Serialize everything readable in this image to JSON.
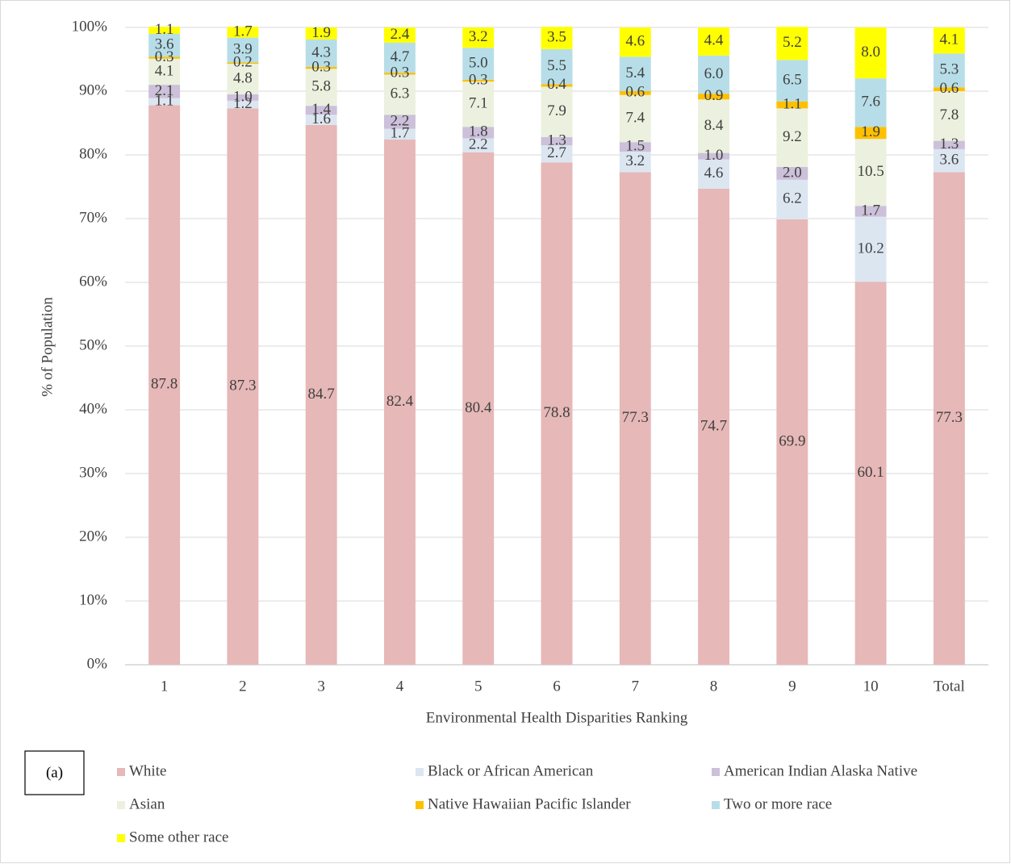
{
  "chart_data": {
    "type": "stacked_bar",
    "xlabel": "Environmental Health Disparities Ranking",
    "ylabel": "% of Population",
    "annotation": "(a)",
    "categories": [
      "1",
      "2",
      "3",
      "4",
      "5",
      "6",
      "7",
      "8",
      "9",
      "10",
      "Total"
    ],
    "series": [
      {
        "name": "White",
        "color": "#e6b8b7",
        "values": [
          87.8,
          87.3,
          84.7,
          82.4,
          80.4,
          78.8,
          77.3,
          74.7,
          69.9,
          60.1,
          77.3
        ],
        "value_labels": [
          "87.8",
          "87.3",
          "84.7",
          "82.4",
          "80.4",
          "78.8",
          "77.3",
          "74.7",
          "69.9",
          "60.1",
          "77.3"
        ]
      },
      {
        "name": "Black or African American",
        "color": "#dce6f1",
        "values": [
          1.1,
          1.2,
          1.6,
          1.7,
          2.2,
          2.7,
          3.2,
          4.6,
          6.2,
          10.2,
          3.6
        ],
        "value_labels": [
          "1.1",
          "1.2",
          "1.6",
          "1.7",
          "2.2",
          "2.7",
          "3.2",
          "4.6",
          "6.2",
          "10.2",
          "3.6"
        ]
      },
      {
        "name": "American Indian Alaska Native",
        "color": "#ccc0da",
        "values": [
          2.1,
          1.0,
          1.4,
          2.2,
          1.8,
          1.3,
          1.5,
          1.0,
          2.0,
          1.7,
          1.3
        ],
        "value_labels": [
          "2.1",
          "1.0",
          "1.4",
          "2.2",
          "1.8",
          "1.3",
          "1.5",
          "1.0",
          "2.0",
          "1.7",
          "1.3"
        ]
      },
      {
        "name": "Asian",
        "color": "#ebf1de",
        "values": [
          4.1,
          4.8,
          5.8,
          6.3,
          7.1,
          7.9,
          7.4,
          8.4,
          9.2,
          10.5,
          7.8
        ],
        "value_labels": [
          "4.1",
          "4.8",
          "5.8",
          "6.3",
          "7.1",
          "7.9",
          "7.4",
          "8.4",
          "9.2",
          "10.5",
          "7.8"
        ]
      },
      {
        "name": "Native Hawaiian Pacific Islander",
        "color": "#ffc000",
        "values": [
          0.3,
          0.2,
          0.3,
          0.3,
          0.3,
          0.4,
          0.6,
          0.9,
          1.1,
          1.9,
          0.6
        ],
        "value_labels": [
          "0.3",
          "0.2",
          "0.3",
          "0.3",
          "0.3",
          "0.4",
          "0.6",
          "0.9",
          "1.1",
          "1.9",
          "0.6"
        ]
      },
      {
        "name": "Two or more race",
        "color": "#b7dee8",
        "values": [
          3.6,
          3.9,
          4.3,
          4.7,
          5.0,
          5.5,
          5.4,
          6.0,
          6.5,
          7.6,
          5.3
        ],
        "value_labels": [
          "3.6",
          "3.9",
          "4.3",
          "4.7",
          "5.0",
          "5.5",
          "5.4",
          "6.0",
          "6.5",
          "7.6",
          "5.3"
        ]
      },
      {
        "name": "Some other race",
        "color": "#ffff00",
        "values": [
          1.1,
          1.7,
          1.9,
          2.4,
          3.2,
          3.5,
          4.6,
          4.4,
          5.2,
          8.0,
          4.1
        ],
        "value_labels": [
          "1.1",
          "1.7",
          "1.9",
          "2.4",
          "3.2",
          "3.5",
          "4.6",
          "4.4",
          "5.2",
          "8.0",
          "4.1"
        ]
      }
    ],
    "ylim": [
      0,
      100
    ],
    "yticks": [
      {
        "value": 0,
        "label": "0%"
      },
      {
        "value": 10,
        "label": "10%"
      },
      {
        "value": 20,
        "label": "20%"
      },
      {
        "value": 30,
        "label": "30%"
      },
      {
        "value": 40,
        "label": "40%"
      },
      {
        "value": 50,
        "label": "50%"
      },
      {
        "value": 60,
        "label": "60%"
      },
      {
        "value": 70,
        "label": "70%"
      },
      {
        "value": 80,
        "label": "80%"
      },
      {
        "value": 90,
        "label": "90%"
      },
      {
        "value": 100,
        "label": "100%"
      }
    ],
    "grid": true,
    "legend": "bottom"
  }
}
